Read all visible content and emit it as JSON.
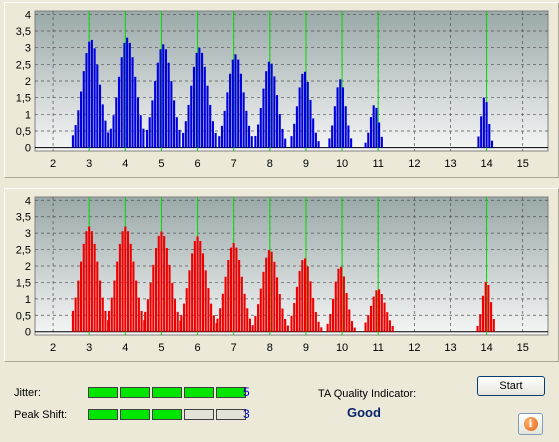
{
  "colors": {
    "plot_bg_top": "#9aa8a8",
    "plot_bg_bottom": "#f6f6f6",
    "marker_line": "#00dd00",
    "grid_line": "#505050",
    "top_bars": "#0000dd",
    "bottom_bars": "#ee0000",
    "meter_on": "#00e600",
    "meter_off": "#e4e2d8"
  },
  "chart_data": [
    {
      "type": "bar",
      "title": "",
      "xlabel": "",
      "ylabel": "",
      "xlim": [
        1.5,
        15.7
      ],
      "ylim": [
        -0.1,
        4.1
      ],
      "x_ticks": [
        "2",
        "3",
        "4",
        "5",
        "6",
        "7",
        "8",
        "9",
        "10",
        "11",
        "12",
        "13",
        "14",
        "15"
      ],
      "y_ticks": [
        "0",
        "0,5",
        "1",
        "1,5",
        "2",
        "2,5",
        "3",
        "3,5",
        "4"
      ],
      "grid": true,
      "color": "#0000dd",
      "markers": [
        3,
        4,
        5,
        6,
        7,
        8,
        9,
        10,
        11,
        14
      ],
      "peaks": [
        {
          "center": 3.05,
          "height": 3.25,
          "width": 0.24,
          "from": 2.55,
          "to": 3.55
        },
        {
          "center": 4.05,
          "height": 3.3,
          "width": 0.24,
          "from": 3.6,
          "to": 4.55
        },
        {
          "center": 5.05,
          "height": 3.1,
          "width": 0.24,
          "from": 4.6,
          "to": 5.55
        },
        {
          "center": 6.05,
          "height": 3.0,
          "width": 0.23,
          "from": 5.6,
          "to": 6.5
        },
        {
          "center": 7.05,
          "height": 2.8,
          "width": 0.22,
          "from": 6.6,
          "to": 7.55
        },
        {
          "center": 8.0,
          "height": 2.6,
          "width": 0.2,
          "from": 7.6,
          "to": 8.45
        },
        {
          "center": 8.95,
          "height": 2.3,
          "width": 0.18,
          "from": 8.6,
          "to": 9.35
        },
        {
          "center": 9.95,
          "height": 2.05,
          "width": 0.15,
          "from": 9.65,
          "to": 10.25
        },
        {
          "center": 10.9,
          "height": 1.3,
          "width": 0.12,
          "from": 10.65,
          "to": 11.1
        },
        {
          "center": 13.95,
          "height": 1.55,
          "width": 0.1,
          "from": 13.7,
          "to": 14.15
        }
      ]
    },
    {
      "type": "bar",
      "title": "",
      "xlabel": "",
      "ylabel": "",
      "xlim": [
        1.5,
        15.7
      ],
      "ylim": [
        -0.1,
        4.1
      ],
      "x_ticks": [
        "2",
        "3",
        "4",
        "5",
        "6",
        "7",
        "8",
        "9",
        "10",
        "11",
        "12",
        "13",
        "14",
        "15"
      ],
      "y_ticks": [
        "0",
        "0,5",
        "1",
        "1,5",
        "2",
        "2,5",
        "3",
        "3,5",
        "4"
      ],
      "grid": true,
      "color": "#ee0000",
      "markers": [
        3,
        4,
        5,
        6,
        7,
        8,
        9,
        10,
        11,
        14
      ],
      "peaks": [
        {
          "center": 3.0,
          "height": 3.2,
          "width": 0.25,
          "from": 2.55,
          "to": 3.55
        },
        {
          "center": 4.0,
          "height": 3.2,
          "width": 0.25,
          "from": 3.55,
          "to": 4.55
        },
        {
          "center": 5.0,
          "height": 3.05,
          "width": 0.25,
          "from": 4.55,
          "to": 5.55
        },
        {
          "center": 6.0,
          "height": 2.9,
          "width": 0.24,
          "from": 5.55,
          "to": 6.55
        },
        {
          "center": 7.0,
          "height": 2.7,
          "width": 0.23,
          "from": 6.55,
          "to": 7.55
        },
        {
          "center": 8.0,
          "height": 2.5,
          "width": 0.22,
          "from": 7.6,
          "to": 8.5
        },
        {
          "center": 8.95,
          "height": 2.25,
          "width": 0.2,
          "from": 8.6,
          "to": 9.45
        },
        {
          "center": 9.95,
          "height": 2.0,
          "width": 0.17,
          "from": 9.6,
          "to": 10.4
        },
        {
          "center": 11.0,
          "height": 1.3,
          "width": 0.2,
          "from": 10.65,
          "to": 11.55
        },
        {
          "center": 14.0,
          "height": 1.55,
          "width": 0.12,
          "from": 13.75,
          "to": 14.25
        }
      ]
    }
  ],
  "status": {
    "jitter_label": "Jitter:",
    "jitter_value": "5",
    "jitter_level": 5,
    "peak_shift_label": "Peak Shift:",
    "peak_shift_value": "3",
    "peak_shift_level": 3,
    "meter_max": 5,
    "ta_label": "TA Quality Indicator:",
    "ta_value": "Good",
    "start_label": "Start",
    "info_icon": "info-icon"
  }
}
